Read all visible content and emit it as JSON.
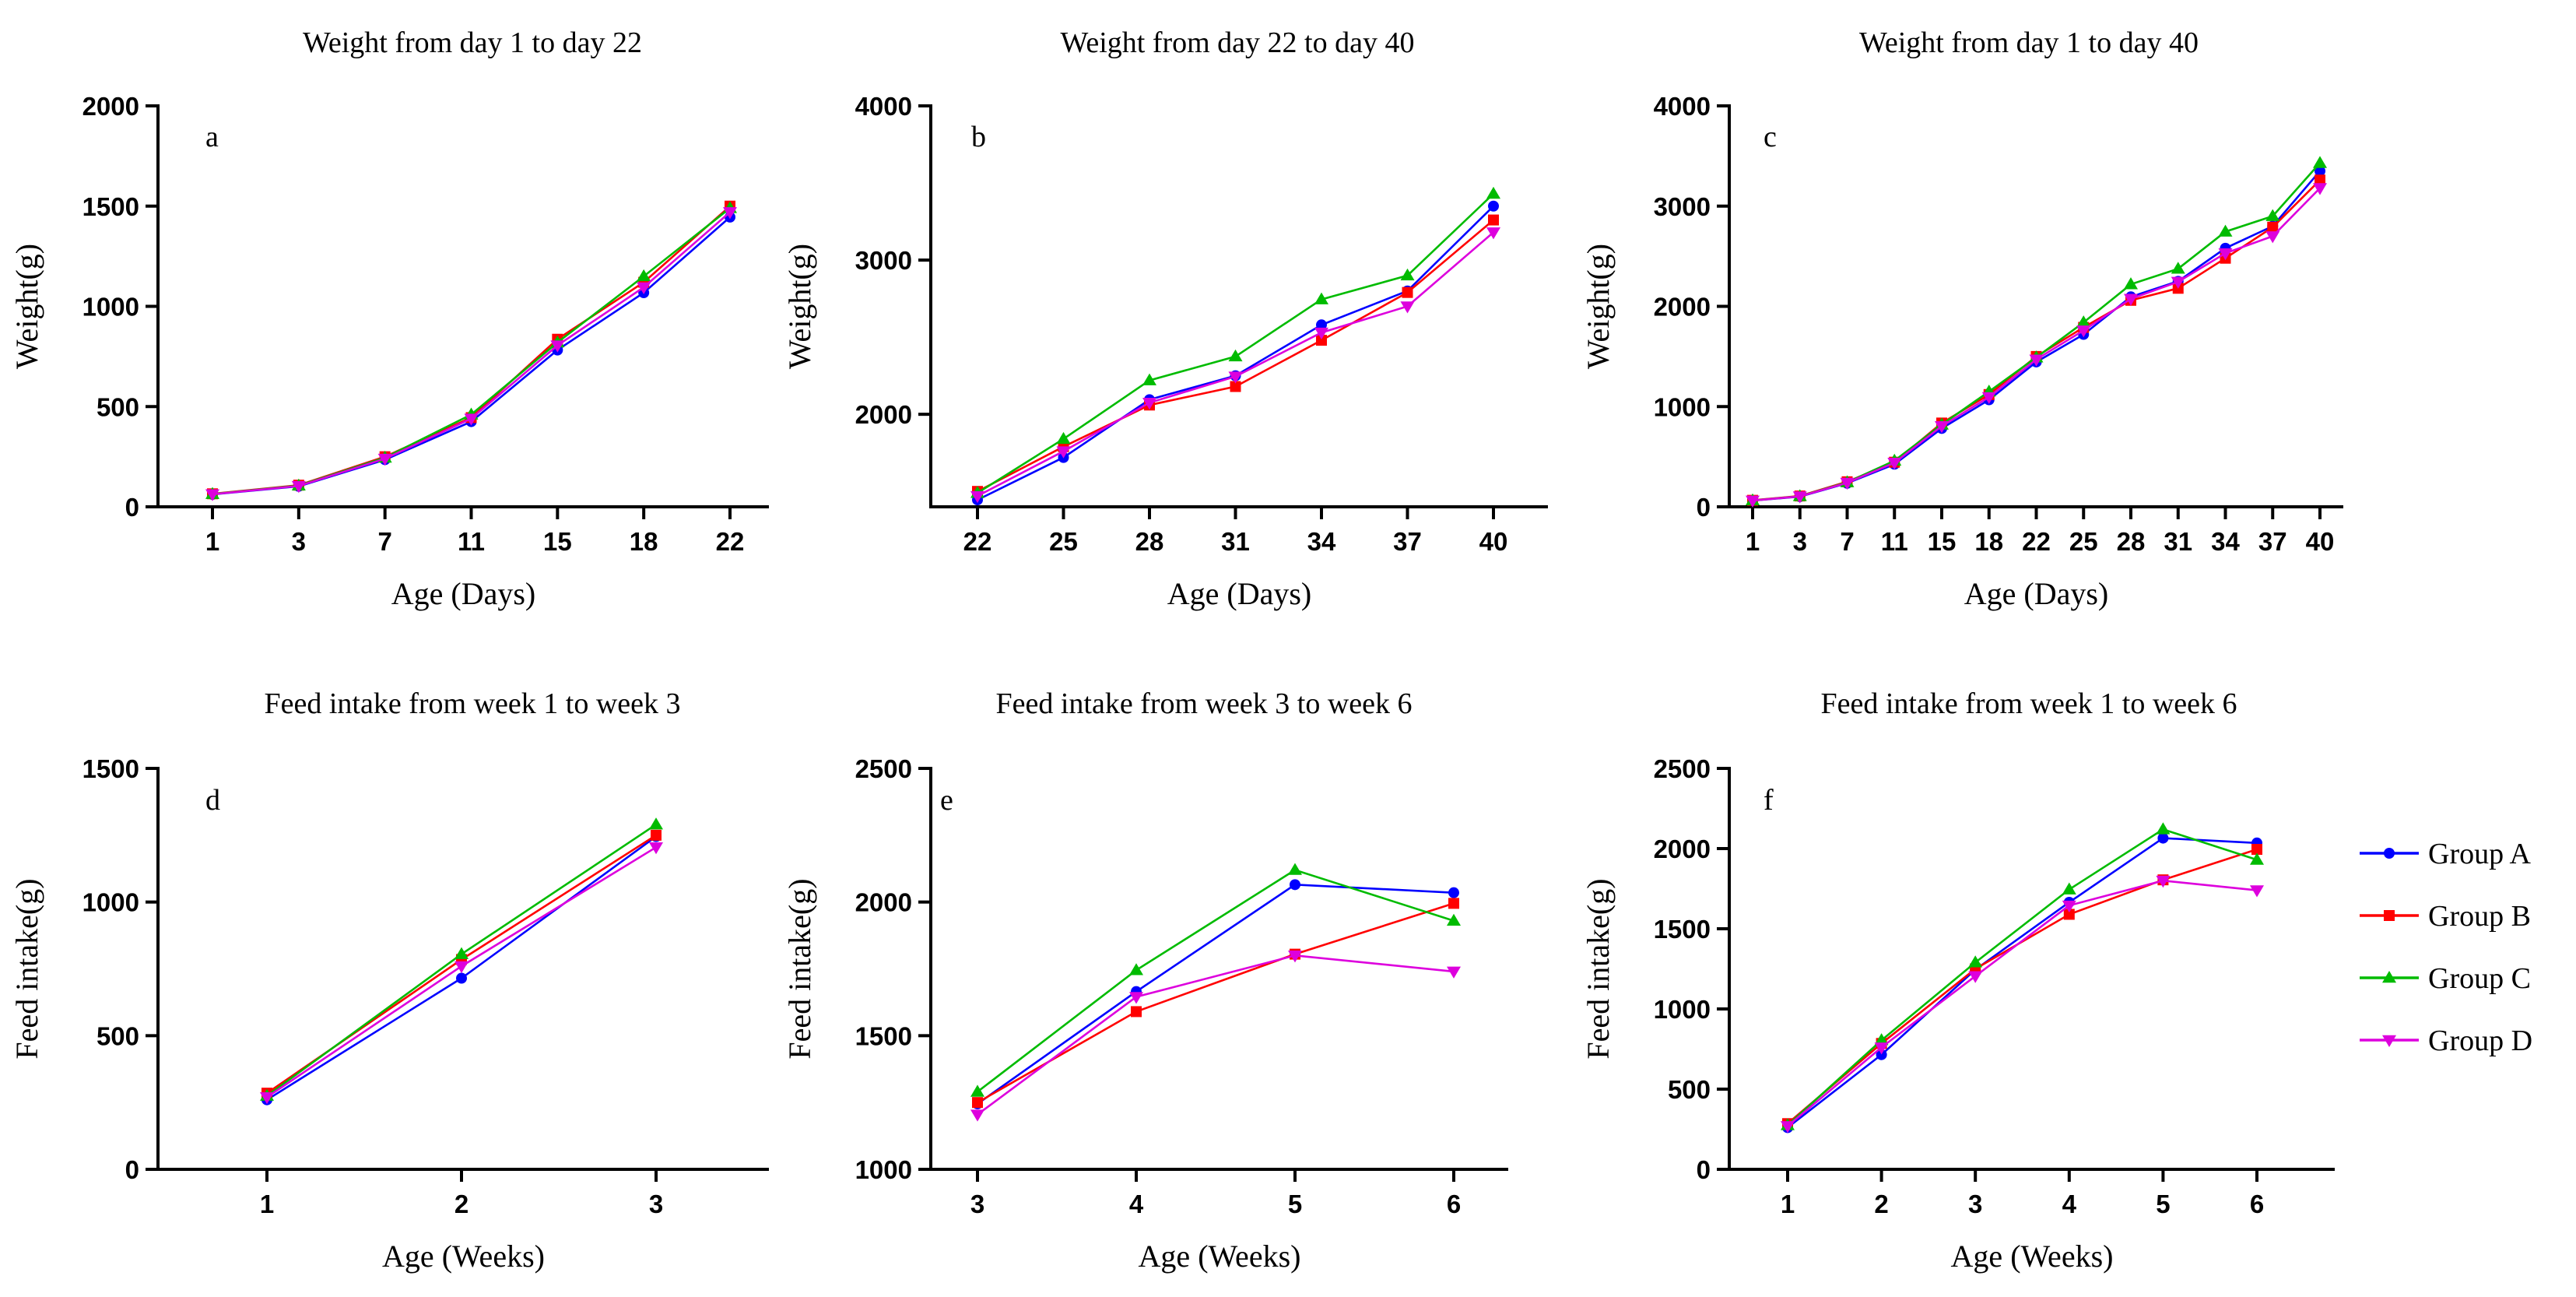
{
  "figure": {
    "legend": [
      {
        "name": "Group A",
        "color": "#0000ff",
        "marker": "circle"
      },
      {
        "name": "Group B",
        "color": "#ff0000",
        "marker": "square"
      },
      {
        "name": "Group C",
        "color": "#00bb00",
        "marker": "triangle-up"
      },
      {
        "name": "Group D",
        "color": "#dd00dd",
        "marker": "triangle-down"
      }
    ]
  },
  "chart_data": [
    {
      "id": "a",
      "type": "line",
      "title": "Weight from day 1 to day 22",
      "xlabel": "Age (Days)",
      "ylabel": "Weight(g)",
      "categories": [
        "1",
        "3",
        "7",
        "11",
        "15",
        "18",
        "22"
      ],
      "ylim": [
        0,
        2000
      ],
      "yticks": [
        "0",
        "500",
        "1000",
        "1500",
        "2000"
      ],
      "series": [
        {
          "name": "Group A",
          "values": [
            62,
            102,
            235,
            425,
            782,
            1068,
            1445
          ]
        },
        {
          "name": "Group B",
          "values": [
            65,
            108,
            250,
            445,
            836,
            1120,
            1500
          ]
        },
        {
          "name": "Group C",
          "values": [
            64,
            106,
            245,
            460,
            820,
            1150,
            1490
          ]
        },
        {
          "name": "Group D",
          "values": [
            63,
            104,
            240,
            440,
            805,
            1095,
            1470
          ]
        }
      ]
    },
    {
      "id": "b",
      "type": "line",
      "title": "Weight from day 22 to day 40",
      "xlabel": "Age (Days)",
      "ylabel": "Weight(g)",
      "categories": [
        "22",
        "25",
        "28",
        "31",
        "34",
        "37",
        "40"
      ],
      "ylim": [
        1400,
        4000
      ],
      "yticks": [
        "2000",
        "3000",
        "4000"
      ],
      "series": [
        {
          "name": "Group A",
          "values": [
            1445,
            1720,
            2095,
            2250,
            2580,
            2800,
            3350
          ]
        },
        {
          "name": "Group B",
          "values": [
            1500,
            1790,
            2060,
            2180,
            2480,
            2790,
            3260
          ]
        },
        {
          "name": "Group C",
          "values": [
            1490,
            1840,
            2220,
            2375,
            2745,
            2900,
            3430
          ]
        },
        {
          "name": "Group D",
          "values": [
            1470,
            1760,
            2075,
            2245,
            2530,
            2700,
            3180
          ]
        }
      ]
    },
    {
      "id": "c",
      "type": "line",
      "title": "Weight from day 1 to day 40",
      "xlabel": "Age (Days)",
      "ylabel": "Weight(g)",
      "categories": [
        "1",
        "3",
        "7",
        "11",
        "15",
        "18",
        "22",
        "25",
        "28",
        "31",
        "34",
        "37",
        "40"
      ],
      "ylim": [
        0,
        4000
      ],
      "yticks": [
        "0",
        "1000",
        "2000",
        "3000",
        "4000"
      ],
      "series": [
        {
          "name": "Group A",
          "values": [
            62,
            102,
            235,
            425,
            782,
            1068,
            1445,
            1720,
            2095,
            2250,
            2580,
            2800,
            3350
          ]
        },
        {
          "name": "Group B",
          "values": [
            65,
            108,
            250,
            445,
            836,
            1120,
            1500,
            1790,
            2060,
            2180,
            2480,
            2790,
            3260
          ]
        },
        {
          "name": "Group C",
          "values": [
            64,
            106,
            245,
            460,
            820,
            1150,
            1490,
            1840,
            2220,
            2375,
            2745,
            2900,
            3430
          ]
        },
        {
          "name": "Group D",
          "values": [
            63,
            104,
            240,
            440,
            805,
            1095,
            1470,
            1760,
            2075,
            2245,
            2530,
            2700,
            3180
          ]
        }
      ]
    },
    {
      "id": "d",
      "type": "line",
      "title": "Feed intake from week 1 to week 3",
      "xlabel": "Age (Weeks)",
      "ylabel": "Feed intake(g)",
      "categories": [
        "1",
        "2",
        "3"
      ],
      "ylim": [
        0,
        1500
      ],
      "yticks": [
        "0",
        "500",
        "1000",
        "1500"
      ],
      "series": [
        {
          "name": "Group A",
          "values": [
            260,
            715,
            1245
          ]
        },
        {
          "name": "Group B",
          "values": [
            285,
            785,
            1250
          ]
        },
        {
          "name": "Group C",
          "values": [
            275,
            805,
            1290
          ]
        },
        {
          "name": "Group D",
          "values": [
            270,
            760,
            1205
          ]
        }
      ]
    },
    {
      "id": "e",
      "type": "line",
      "title": "Feed intake from week 3 to week 6",
      "xlabel": "Age (Weeks)",
      "ylabel": "Feed intake(g)",
      "categories": [
        "3",
        "4",
        "5",
        "6"
      ],
      "ylim": [
        1000,
        2500
      ],
      "yticks": [
        "1000",
        "1500",
        "2000",
        "2500"
      ],
      "series": [
        {
          "name": "Group A",
          "values": [
            1245,
            1665,
            2065,
            2035
          ]
        },
        {
          "name": "Group B",
          "values": [
            1250,
            1590,
            1805,
            1995
          ]
        },
        {
          "name": "Group C",
          "values": [
            1290,
            1745,
            2120,
            1930
          ]
        },
        {
          "name": "Group D",
          "values": [
            1205,
            1645,
            1800,
            1740
          ]
        }
      ]
    },
    {
      "id": "f",
      "type": "line",
      "title": "Feed intake from week 1 to week 6",
      "xlabel": "Age (Weeks)",
      "ylabel": "Feed intake(g)",
      "categories": [
        "1",
        "2",
        "3",
        "4",
        "5",
        "6"
      ],
      "ylim": [
        0,
        2500
      ],
      "yticks": [
        "0",
        "500",
        "1000",
        "1500",
        "2000",
        "2500"
      ],
      "series": [
        {
          "name": "Group A",
          "values": [
            260,
            715,
            1245,
            1665,
            2065,
            2035
          ]
        },
        {
          "name": "Group B",
          "values": [
            285,
            785,
            1250,
            1590,
            1805,
            1995
          ]
        },
        {
          "name": "Group C",
          "values": [
            275,
            805,
            1290,
            1745,
            2120,
            1930
          ]
        },
        {
          "name": "Group D",
          "values": [
            270,
            760,
            1205,
            1645,
            1800,
            1740
          ]
        }
      ]
    }
  ]
}
